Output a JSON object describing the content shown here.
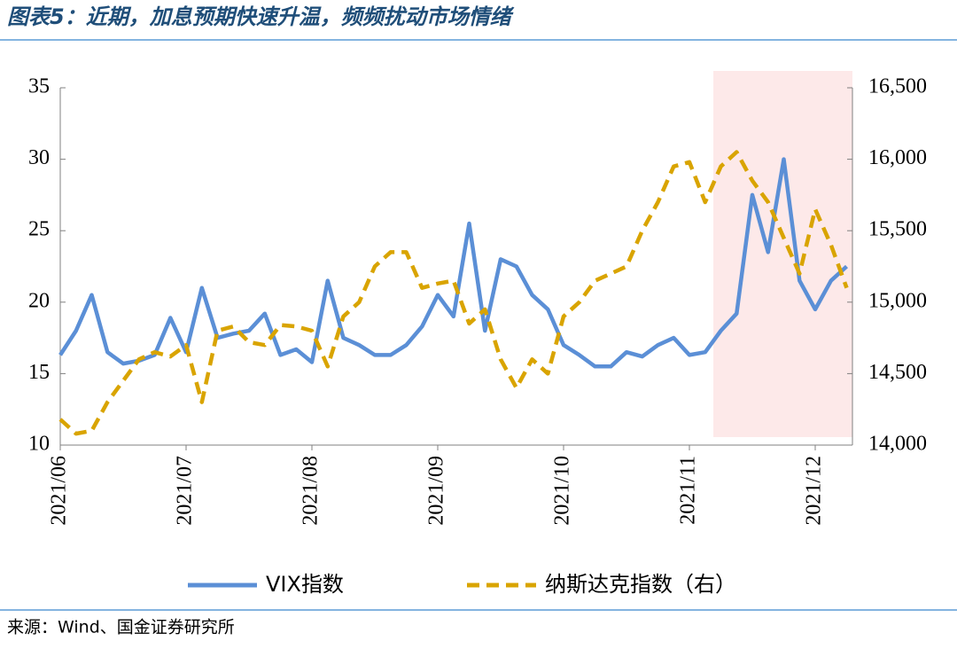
{
  "chart_data": {
    "type": "line",
    "title": "图表5：近期，加息预期快速升温，频频扰动市场情绪",
    "source": "来源：Wind、国金证券研究所",
    "categories": [
      "2021/06",
      null,
      null,
      null,
      null,
      null,
      null,
      null,
      "2021/07",
      null,
      null,
      null,
      null,
      null,
      null,
      null,
      "2021/08",
      null,
      null,
      null,
      null,
      null,
      null,
      null,
      "2021/09",
      null,
      null,
      null,
      null,
      null,
      null,
      null,
      "2021/10",
      null,
      null,
      null,
      null,
      null,
      null,
      null,
      "2021/11",
      null,
      null,
      null,
      null,
      null,
      null,
      null,
      "2021/12",
      null,
      null
    ],
    "series": [
      {
        "name": "VIX指数",
        "color": "#5b8fd6",
        "axis": "y",
        "dash": false,
        "values": [
          16.3,
          18,
          20.5,
          16.5,
          15.7,
          15.9,
          16.3,
          18.9,
          16.5,
          21,
          17.5,
          17.8,
          18,
          19.2,
          16.3,
          16.7,
          15.8,
          21.5,
          17.5,
          17,
          16.3,
          16.3,
          17,
          18.3,
          20.5,
          19,
          25.5,
          18,
          23,
          22.5,
          20.5,
          19.5,
          17,
          16.3,
          15.5,
          15.5,
          16.5,
          16.2,
          17,
          17.5,
          16.3,
          16.5,
          18,
          19.2,
          27.5,
          23.5,
          30,
          21.5,
          19.5,
          21.5,
          22.5
        ]
      },
      {
        "name": "纳斯达克指数（右）",
        "color": "#d9a400",
        "axis": "y2",
        "dash": true,
        "values": [
          14180,
          14080,
          14100,
          14300,
          14450,
          14600,
          14650,
          14620,
          14700,
          14300,
          14800,
          14830,
          14720,
          14700,
          14840,
          14830,
          14800,
          14550,
          14900,
          15000,
          15250,
          15350,
          15350,
          15100,
          15130,
          15150,
          14850,
          14950,
          14600,
          14400,
          14600,
          14500,
          14900,
          15000,
          15150,
          15200,
          15250,
          15500,
          15700,
          15950,
          15980,
          15700,
          15950,
          16050,
          15850,
          15700,
          15450,
          15200,
          15650,
          15400,
          15100
        ]
      }
    ],
    "ylim": [
      10,
      35
    ],
    "yticks": [
      10,
      15,
      20,
      25,
      30,
      35
    ],
    "y2lim": [
      14000,
      16500
    ],
    "y2ticks": [
      {
        "value": 14000,
        "label": "14,000"
      },
      {
        "value": 14500,
        "label": "14,500"
      },
      {
        "value": 15000,
        "label": "15,000"
      },
      {
        "value": 15500,
        "label": "15,500"
      },
      {
        "value": 16000,
        "label": "16,000"
      },
      {
        "value": 16500,
        "label": "16,500"
      }
    ]
  }
}
